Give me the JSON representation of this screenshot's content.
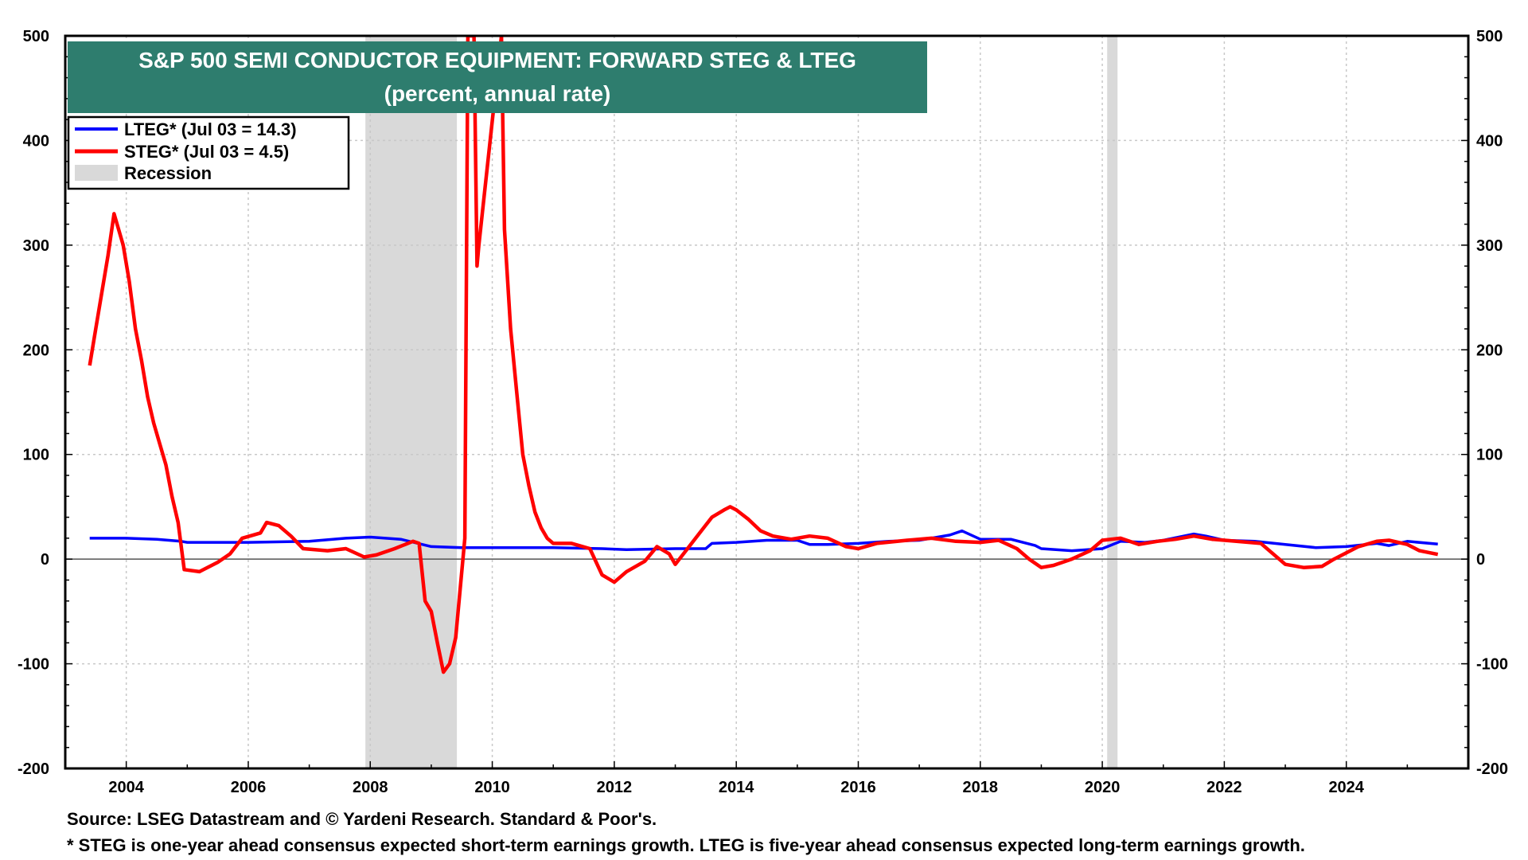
{
  "chart_data": {
    "type": "line",
    "title": "S&P 500 SEMI CONDUCTOR EQUIPMENT: FORWARD STEG & LTEG",
    "subtitle": "(percent, annual rate)",
    "ylim": [
      -200,
      500
    ],
    "xlim": [
      2003.0,
      2026.0
    ],
    "y_ticks": [
      -200,
      -100,
      0,
      100,
      200,
      300,
      400,
      500
    ],
    "x_ticks": [
      "2004",
      "2006",
      "2008",
      "2010",
      "2012",
      "2014",
      "2016",
      "2018",
      "2020",
      "2022",
      "2024"
    ],
    "grid": true,
    "dual_y_axis": true,
    "legend_position": "top-left",
    "legend": [
      {
        "label": "LTEG* (Jul 03 = 14.3)",
        "color": "#0000ff"
      },
      {
        "label": "STEG* (Jul 03 = 4.5)",
        "color": "#ff0000"
      },
      {
        "label": "Recession",
        "color": "#d9d9d9"
      }
    ],
    "recessions": [
      [
        2007.92,
        2009.42
      ],
      [
        2020.08,
        2020.25
      ]
    ],
    "series": [
      {
        "name": "LTEG*",
        "color": "#0000ff",
        "points": [
          [
            2003.4,
            20
          ],
          [
            2004.0,
            20
          ],
          [
            2004.5,
            19
          ],
          [
            2004.9,
            17
          ],
          [
            2005.0,
            16
          ],
          [
            2006.0,
            16
          ],
          [
            2007.0,
            17
          ],
          [
            2007.6,
            20
          ],
          [
            2008.0,
            21
          ],
          [
            2008.5,
            19
          ],
          [
            2009.0,
            12
          ],
          [
            2009.5,
            11
          ],
          [
            2010.0,
            11
          ],
          [
            2011.0,
            11
          ],
          [
            2011.8,
            10
          ],
          [
            2012.2,
            9
          ],
          [
            2013.0,
            10
          ],
          [
            2013.5,
            10
          ],
          [
            2013.6,
            15
          ],
          [
            2014.0,
            16
          ],
          [
            2014.5,
            18
          ],
          [
            2015.0,
            18
          ],
          [
            2015.2,
            14
          ],
          [
            2015.5,
            14
          ],
          [
            2016.0,
            15
          ],
          [
            2016.5,
            17
          ],
          [
            2017.0,
            18
          ],
          [
            2017.5,
            23
          ],
          [
            2017.7,
            27
          ],
          [
            2018.0,
            19
          ],
          [
            2018.5,
            19
          ],
          [
            2018.9,
            13
          ],
          [
            2019.0,
            10
          ],
          [
            2019.5,
            8
          ],
          [
            2020.0,
            10
          ],
          [
            2020.3,
            17
          ],
          [
            2020.7,
            16
          ],
          [
            2021.0,
            18
          ],
          [
            2021.5,
            24
          ],
          [
            2021.7,
            22
          ],
          [
            2022.0,
            18
          ],
          [
            2022.5,
            17
          ],
          [
            2023.0,
            14
          ],
          [
            2023.5,
            11
          ],
          [
            2024.0,
            12
          ],
          [
            2024.5,
            15
          ],
          [
            2024.7,
            13
          ],
          [
            2025.0,
            17
          ],
          [
            2025.5,
            14.3
          ]
        ]
      },
      {
        "name": "STEG*",
        "color": "#ff0000",
        "points": [
          [
            2003.4,
            185
          ],
          [
            2003.5,
            220
          ],
          [
            2003.6,
            255
          ],
          [
            2003.7,
            290
          ],
          [
            2003.8,
            330
          ],
          [
            2003.95,
            300
          ],
          [
            2004.05,
            265
          ],
          [
            2004.15,
            220
          ],
          [
            2004.25,
            190
          ],
          [
            2004.35,
            155
          ],
          [
            2004.45,
            130
          ],
          [
            2004.55,
            110
          ],
          [
            2004.65,
            90
          ],
          [
            2004.75,
            60
          ],
          [
            2004.85,
            35
          ],
          [
            2004.95,
            -10
          ],
          [
            2005.2,
            -12
          ],
          [
            2005.5,
            -3
          ],
          [
            2005.7,
            5
          ],
          [
            2005.9,
            20
          ],
          [
            2006.2,
            25
          ],
          [
            2006.3,
            35
          ],
          [
            2006.5,
            32
          ],
          [
            2006.7,
            22
          ],
          [
            2006.9,
            10
          ],
          [
            2007.3,
            8
          ],
          [
            2007.6,
            10
          ],
          [
            2007.9,
            2
          ],
          [
            2008.1,
            4
          ],
          [
            2008.4,
            10
          ],
          [
            2008.7,
            17
          ],
          [
            2008.8,
            15
          ],
          [
            2008.9,
            -40
          ],
          [
            2009.0,
            -50
          ],
          [
            2009.1,
            -80
          ],
          [
            2009.2,
            -108
          ],
          [
            2009.3,
            -100
          ],
          [
            2009.4,
            -75
          ],
          [
            2009.55,
            20
          ],
          [
            2009.6,
            500
          ],
          [
            2009.7,
            500
          ],
          [
            2009.75,
            280
          ],
          [
            2009.78,
            300
          ],
          [
            2010.15,
            500
          ],
          [
            2010.2,
            315
          ],
          [
            2010.3,
            220
          ],
          [
            2010.4,
            160
          ],
          [
            2010.5,
            100
          ],
          [
            2010.6,
            70
          ],
          [
            2010.7,
            45
          ],
          [
            2010.8,
            30
          ],
          [
            2010.9,
            20
          ],
          [
            2011.0,
            15
          ],
          [
            2011.3,
            15
          ],
          [
            2011.6,
            10
          ],
          [
            2011.8,
            -15
          ],
          [
            2012.0,
            -22
          ],
          [
            2012.2,
            -12
          ],
          [
            2012.5,
            -2
          ],
          [
            2012.7,
            12
          ],
          [
            2012.9,
            5
          ],
          [
            2013.0,
            -5
          ],
          [
            2013.2,
            10
          ],
          [
            2013.4,
            25
          ],
          [
            2013.6,
            40
          ],
          [
            2013.8,
            47
          ],
          [
            2013.9,
            50
          ],
          [
            2014.0,
            47
          ],
          [
            2014.2,
            38
          ],
          [
            2014.4,
            27
          ],
          [
            2014.6,
            22
          ],
          [
            2014.9,
            19
          ],
          [
            2015.2,
            22
          ],
          [
            2015.5,
            20
          ],
          [
            2015.8,
            12
          ],
          [
            2016.0,
            10
          ],
          [
            2016.3,
            15
          ],
          [
            2016.8,
            18
          ],
          [
            2017.2,
            20
          ],
          [
            2017.6,
            17
          ],
          [
            2018.0,
            16
          ],
          [
            2018.3,
            18
          ],
          [
            2018.6,
            10
          ],
          [
            2018.8,
            0
          ],
          [
            2019.0,
            -8
          ],
          [
            2019.2,
            -6
          ],
          [
            2019.5,
            0
          ],
          [
            2019.8,
            8
          ],
          [
            2020.0,
            18
          ],
          [
            2020.3,
            20
          ],
          [
            2020.6,
            14
          ],
          [
            2020.9,
            17
          ],
          [
            2021.2,
            19
          ],
          [
            2021.5,
            22
          ],
          [
            2021.8,
            19
          ],
          [
            2022.2,
            17
          ],
          [
            2022.6,
            15
          ],
          [
            2022.8,
            5
          ],
          [
            2023.0,
            -5
          ],
          [
            2023.3,
            -8
          ],
          [
            2023.6,
            -7
          ],
          [
            2023.8,
            0
          ],
          [
            2024.0,
            6
          ],
          [
            2024.2,
            12
          ],
          [
            2024.5,
            17
          ],
          [
            2024.7,
            18
          ],
          [
            2025.0,
            14
          ],
          [
            2025.2,
            8
          ],
          [
            2025.5,
            4.5
          ]
        ]
      }
    ]
  },
  "footnotes": {
    "source": "Source: LSEG Datastream and © Yardeni Research. Standard & Poor's.",
    "definition": "* STEG is one-year ahead consensus expected short-term earnings growth. LTEG is five-year ahead consensus expected long-term earnings growth."
  }
}
